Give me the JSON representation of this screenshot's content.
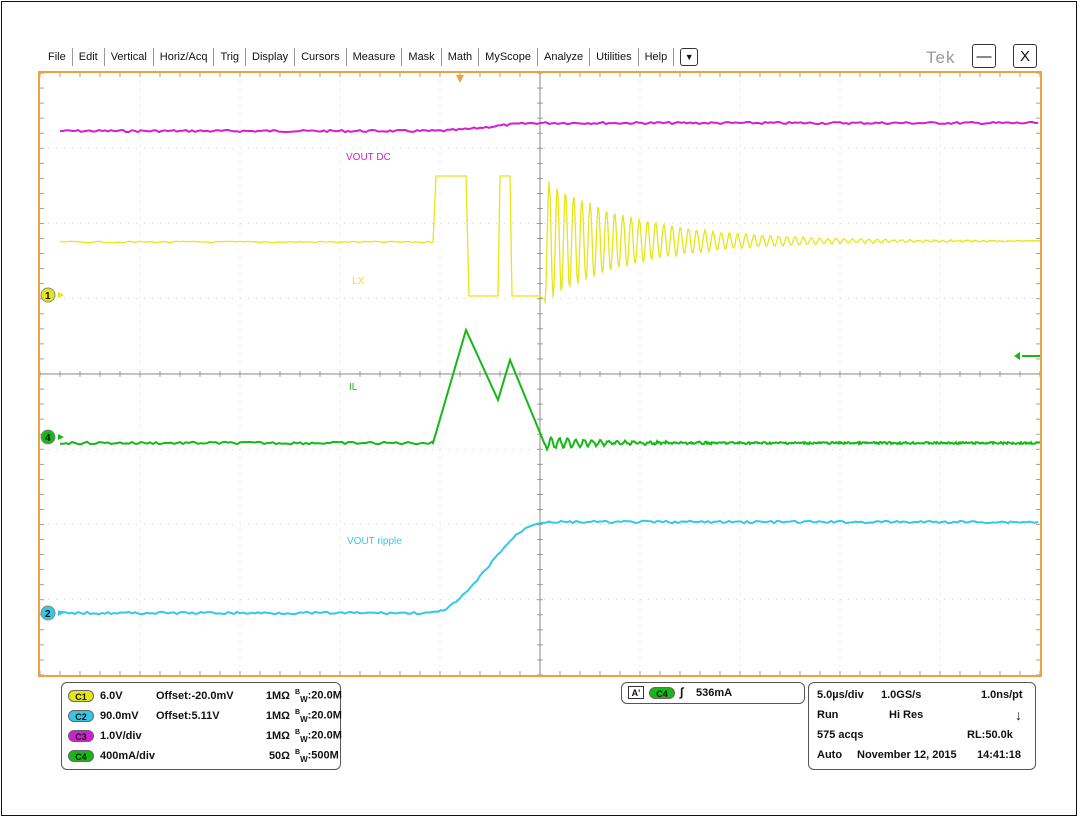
{
  "menu": {
    "items": [
      "File",
      "Edit",
      "Vertical",
      "Horiz/Acq",
      "Trig",
      "Display",
      "Cursors",
      "Measure",
      "Mask",
      "Math",
      "MyScope",
      "Analyze",
      "Utilities",
      "Help"
    ],
    "dropdown_icon": "triangle-down",
    "logo": "Tek",
    "minimize_symbol": "—",
    "close_symbol": "X"
  },
  "colors": {
    "frame": "#f0a040",
    "grid": "#b0b0b0",
    "ch1": "#e6e617",
    "ch2": "#35c8e6",
    "ch3": "#d21ed2",
    "ch4": "#16b816"
  },
  "traces": {
    "vout_dc": "VOUT DC",
    "lx": "LX",
    "il": "IL",
    "vout_ripple": "VOUT ripple"
  },
  "markers": {
    "ch1": "1",
    "ch4": "4",
    "ch2": "2"
  },
  "channels": [
    {
      "badge": "C1",
      "scale": "6.0V",
      "offset": "Offset:-20.0mV",
      "impedance": "1MΩ",
      "bw": "20.0M",
      "color": "#e6e617"
    },
    {
      "badge": "C2",
      "scale": "90.0mV",
      "offset": "Offset:5.11V",
      "impedance": "1MΩ",
      "bw": "20.0M",
      "color": "#35c8e6"
    },
    {
      "badge": "C3",
      "scale": "1.0V/div",
      "offset": "",
      "impedance": "1MΩ",
      "bw": "20.0M",
      "color": "#d21ed2"
    },
    {
      "badge": "C4",
      "scale": "400mA/div",
      "offset": "",
      "impedance": "50Ω",
      "bw": "500M",
      "color": "#16b816"
    }
  ],
  "bw_prefix": "B",
  "bw_sub": "W",
  "trigger": {
    "mode": "A'",
    "channel": "C4",
    "slope": "rising",
    "level": "536mA"
  },
  "acquisition": {
    "timebase": "5.0µs/div",
    "sample_rate": "1.0GS/s",
    "resolution": "1.0ns/pt",
    "state": "Run",
    "mode": "Hi Res",
    "acqs": "575 acqs",
    "record_length": "RL:50.0k",
    "trigger_mode": "Auto",
    "date": "November 12, 2015",
    "time": "14:41:18"
  }
}
